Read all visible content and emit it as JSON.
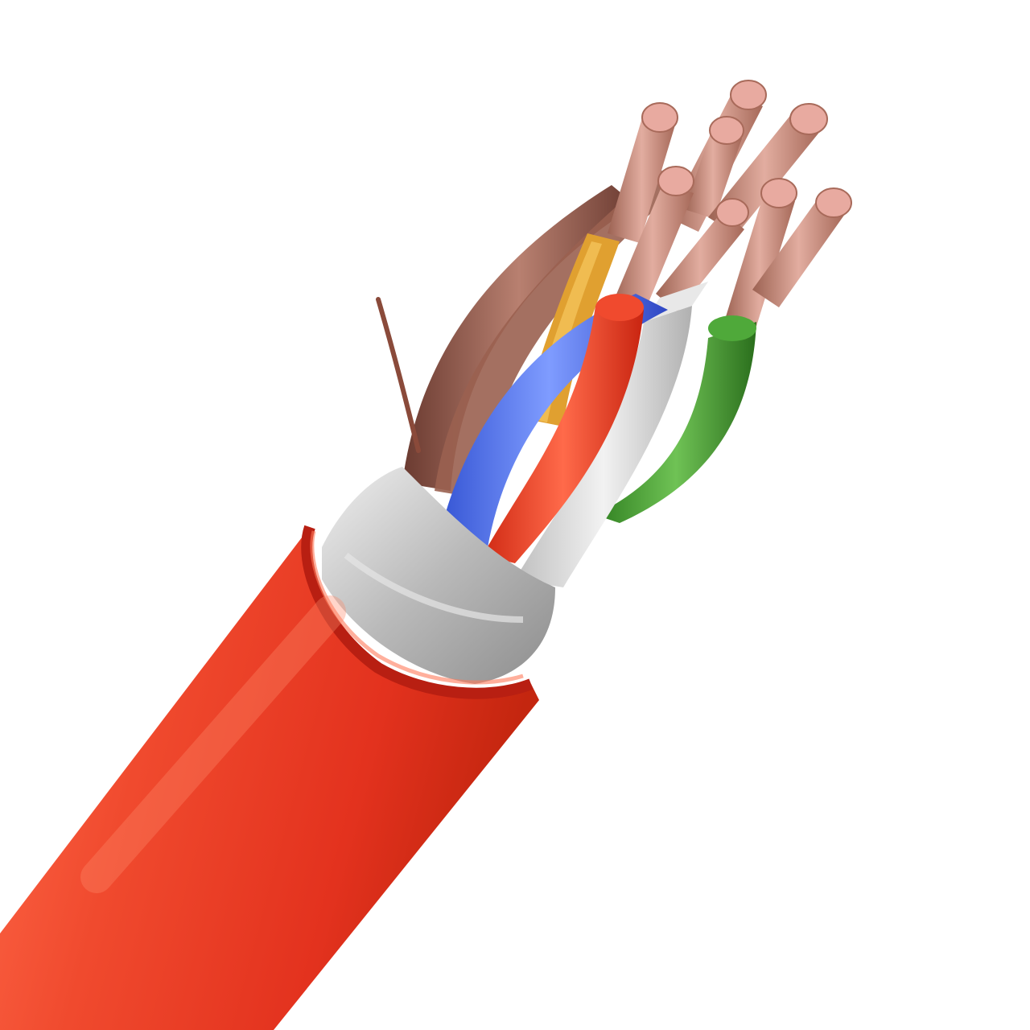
{
  "image": {
    "background": "#ffffff",
    "colors": {
      "jacket": "#e8321f",
      "jacket_highlight": "#ff6a4a",
      "jacket_shadow": "#b81f12",
      "foil_shield": "#c9c9c9",
      "copper": "#c98a78",
      "copper_end": "#e8aaa0",
      "core_brown": "#8a5044",
      "core_yellow": "#e0a030",
      "core_blue": "#3b5fe0",
      "core_red": "#ee3a22",
      "core_white": "#dcdcdc",
      "core_green": "#3f9a2c",
      "drain_wire": "#8a4a3a"
    }
  }
}
